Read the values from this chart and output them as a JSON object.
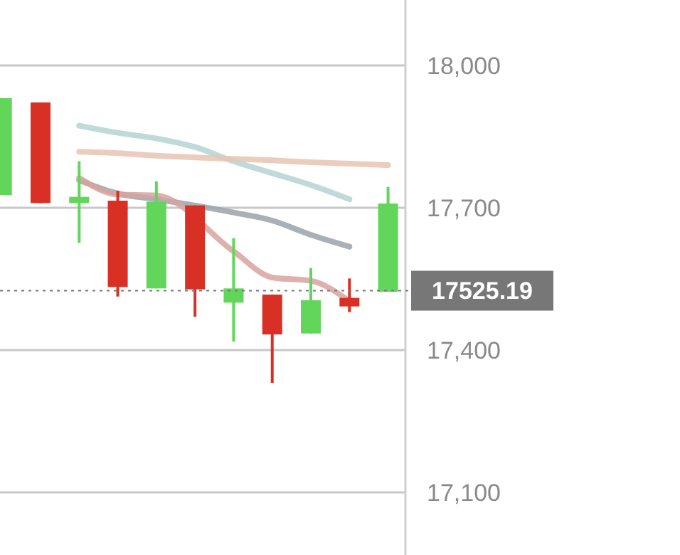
{
  "chart_data": {
    "type": "candlestick",
    "categories": [
      null,
      null,
      null,
      null,
      null,
      null,
      null,
      null,
      null,
      null,
      null
    ],
    "ohlc": [
      [
        17727,
        17931,
        17727,
        17931
      ],
      [
        17922,
        17922,
        17710,
        17710
      ],
      [
        17710,
        17798,
        17626,
        17723
      ],
      [
        17715,
        17736,
        17513,
        17533
      ],
      [
        17530,
        17756,
        17530,
        17713
      ],
      [
        17705,
        17705,
        17470,
        17528
      ],
      [
        17500,
        17636,
        17418,
        17530
      ],
      [
        17517,
        17517,
        17331,
        17433
      ],
      [
        17435,
        17573,
        17435,
        17505
      ],
      [
        17510,
        17551,
        17480,
        17492
      ],
      [
        17523,
        17744,
        17523,
        17709
      ]
    ],
    "colors": [
      "#62d65a",
      "#d93025",
      "#62d65a",
      "#d93025",
      "#62d65a",
      "#d93025",
      "#62d65a",
      "#d93025",
      "#62d65a",
      "#d93025",
      "#62d65a"
    ],
    "series": [
      {
        "type": "line",
        "color": "#b5d3d3",
        "values": [
          null,
          null,
          17873,
          17858,
          17846,
          17828,
          17798,
          17773,
          17748,
          17718,
          null
        ]
      },
      {
        "type": "line",
        "color": "#e6c4b2",
        "values": [
          null,
          null,
          17818,
          17815,
          17810,
          17806,
          17803,
          17800,
          17796,
          17793,
          17790
        ]
      },
      {
        "type": "line",
        "color": "#9aa3aa",
        "values": [
          null,
          null,
          17758,
          17730,
          17718,
          null,
          17690,
          17673,
          17643,
          17618,
          null
        ]
      },
      {
        "type": "line",
        "color": "#d9a3a0",
        "values": [
          null,
          null,
          17763,
          17728,
          17726,
          null,
          17608,
          17553,
          17546,
          17503,
          null
        ]
      }
    ],
    "ylim": [
      16968,
      18138
    ],
    "yticks": [
      {
        "value": 18000,
        "label": "18,000"
      },
      {
        "value": 17700,
        "label": "17,700"
      },
      {
        "value": 17400,
        "label": "17,400"
      },
      {
        "value": 17100,
        "label": "17,100"
      }
    ],
    "grid": "y",
    "ref_lines": [
      {
        "axis": "y",
        "value": 17525.19,
        "label": "17525.19",
        "color": "#777777",
        "line_style": "dotted"
      }
    ]
  }
}
